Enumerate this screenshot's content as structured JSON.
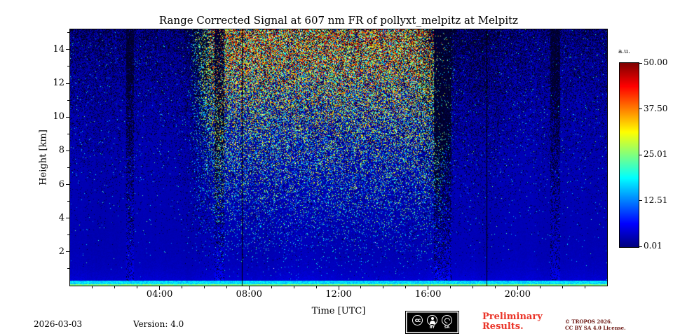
{
  "chart_data": {
    "type": "heatmap",
    "title": "Range Corrected Signal at 607 nm FR of pollyxt_melpitz at Melpitz",
    "xlabel": "Time [UTC]",
    "ylabel": "Height [km]",
    "x_range_hours": [
      0,
      24
    ],
    "x_major_ticks": [
      {
        "hour": 4,
        "label": "04:00"
      },
      {
        "hour": 8,
        "label": "08:00"
      },
      {
        "hour": 12,
        "label": "12:00"
      },
      {
        "hour": 16,
        "label": "16:00"
      },
      {
        "hour": 20,
        "label": "20:00"
      }
    ],
    "x_minor_tick_every_hours": 1,
    "y_range_km": [
      0,
      15.2
    ],
    "y_major_ticks_km": [
      2,
      4,
      6,
      8,
      10,
      12,
      14
    ],
    "y_minor_tick_every_km": 1,
    "colorbar": {
      "label": "a.u.",
      "tick_labels": [
        "50.00",
        "37.50",
        "25.01",
        "12.51",
        "0.01"
      ],
      "vmin": 0.01,
      "vmax": 50.0,
      "colormap": "jet"
    },
    "features": {
      "seed": 42,
      "daytime_noise_window_hours": [
        5.5,
        17.1
      ],
      "cloud_attenuation_bands_hours": [
        [
          2.5,
          2.85,
          0.7
        ],
        [
          6.45,
          6.9,
          0.75
        ],
        [
          16.25,
          17.05,
          0.85
        ],
        [
          21.45,
          21.9,
          0.75
        ]
      ],
      "vertical_marker_lines_hours": [
        7.67,
        18.6
      ],
      "near_field_bright_layer_km": 0.3,
      "description": "Blue low-signal background; speckle noise density grows with height and during daylight (~05:30-17:00), peaking as yellow/green/white noise above 8 km around 08:00-14:00; dark attenuated columns at the listed hours; bright cyan near-field layer at the bottom."
    }
  },
  "footer": {
    "date": "2026-03-03",
    "version": "Version: 4.0",
    "preliminary_line1": "Preliminary",
    "preliminary_line2": "Results.",
    "copyright_line1": "© TROPOS 2026.",
    "copyright_line2": "CC BY SA 4.0 License.",
    "badge": {
      "cc": "cc",
      "by": "BY",
      "sa": "SA"
    }
  }
}
